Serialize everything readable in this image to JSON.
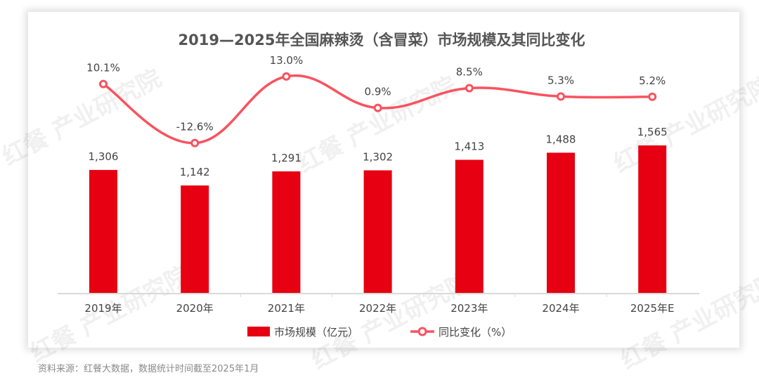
{
  "chart_data": {
    "type": "bar+line",
    "title": "2019—2025年全国麻辣烫（含冒菜）市场规模及其同比变化",
    "categories": [
      "2019年",
      "2020年",
      "2021年",
      "2022年",
      "2023年",
      "2024年",
      "2025年E"
    ],
    "series": [
      {
        "name": "市场规模（亿元）",
        "type": "bar",
        "values": [
          1306,
          1142,
          1291,
          1302,
          1413,
          1488,
          1565
        ],
        "labels": [
          "1,306",
          "1,142",
          "1,291",
          "1,302",
          "1,413",
          "1,488",
          "1,565"
        ],
        "color": "#e60012"
      },
      {
        "name": "同比变化（%）",
        "type": "line",
        "values": [
          10.1,
          -12.6,
          13.0,
          0.9,
          8.5,
          5.3,
          5.2
        ],
        "labels": [
          "10.1%",
          "-12.6%",
          "13.0%",
          "0.9%",
          "8.5%",
          "5.3%",
          "5.2%"
        ],
        "color": "#f8535f"
      }
    ],
    "legend": "bottom",
    "grid": false
  },
  "source": "资料来源：红餐大数据，数据统计时间截至2025年1月",
  "watermark": "红餐 产业研究院"
}
